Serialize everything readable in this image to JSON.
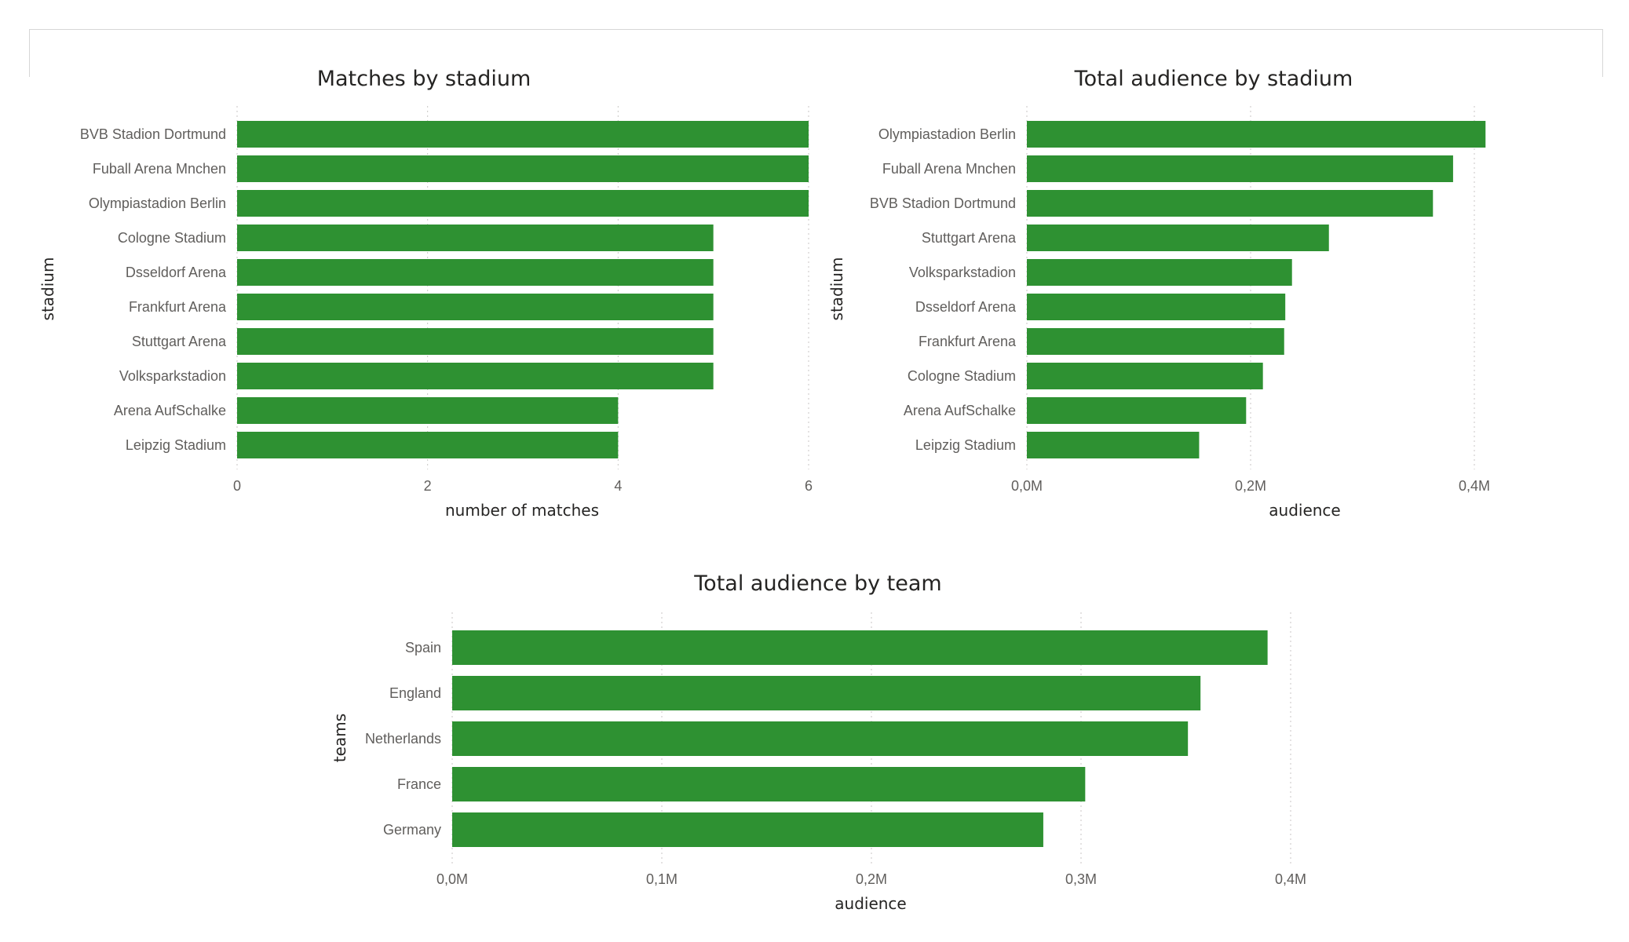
{
  "colors": {
    "bar": "#2e9132"
  },
  "chart_data": [
    {
      "type": "bar",
      "orientation": "horizontal",
      "title": "Matches by stadium",
      "xlabel": "number of matches",
      "ylabel": "stadium",
      "categories": [
        "BVB Stadion Dortmund",
        "Fuball Arena Mnchen",
        "Olympiastadion Berlin",
        "Cologne Stadium",
        "Dsseldorf Arena",
        "Frankfurt Arena",
        "Stuttgart Arena",
        "Volksparkstadion",
        "Arena AufSchalke",
        "Leipzig Stadium"
      ],
      "values": [
        6,
        6,
        6,
        5,
        5,
        5,
        5,
        5,
        4,
        4
      ],
      "xlim": [
        0,
        6
      ],
      "ticks": [
        0,
        2,
        4,
        6
      ],
      "tick_labels": [
        "0",
        "2",
        "4",
        "6"
      ],
      "grid": true
    },
    {
      "type": "bar",
      "orientation": "horizontal",
      "title": "Total audience by stadium",
      "xlabel": "audience",
      "ylabel": "stadium",
      "categories": [
        "Olympiastadion Berlin",
        "Fuball Arena Mnchen",
        "BVB Stadion Dortmund",
        "Stuttgart Arena",
        "Volksparkstadion",
        "Dsseldorf Arena",
        "Frankfurt Arena",
        "Cologne Stadium",
        "Arena AufSchalke",
        "Leipzig Stadium"
      ],
      "values": [
        410000,
        381000,
        363000,
        270000,
        237000,
        231000,
        230000,
        211000,
        196000,
        154000
      ],
      "xlim": [
        0,
        400000
      ],
      "ticks": [
        0,
        200000,
        400000
      ],
      "tick_labels": [
        "0,0M",
        "0,2M",
        "0,4M"
      ],
      "grid": true
    },
    {
      "type": "bar",
      "orientation": "horizontal",
      "title": "Total audience by team",
      "xlabel": "audience",
      "ylabel": "teams",
      "categories": [
        "Spain",
        "England",
        "Netherlands",
        "France",
        "Germany"
      ],
      "values": [
        389000,
        357000,
        351000,
        302000,
        282000
      ],
      "xlim": [
        0,
        400000
      ],
      "ticks": [
        0,
        100000,
        200000,
        300000,
        400000
      ],
      "tick_labels": [
        "0,0M",
        "0,1M",
        "0,2M",
        "0,3M",
        "0,4M"
      ],
      "grid": true
    }
  ]
}
